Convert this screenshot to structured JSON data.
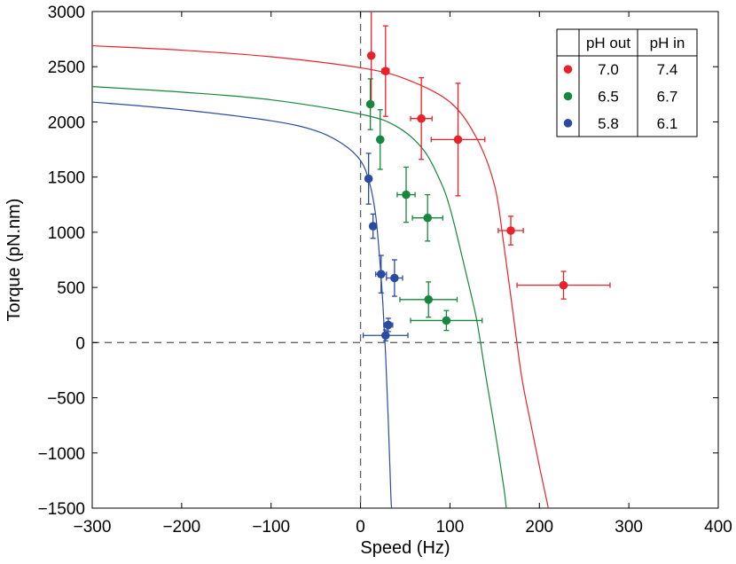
{
  "chart_data": {
    "type": "scatter",
    "xlabel": "Speed (Hz)",
    "ylabel": "Torque (pN.nm)",
    "xlim": [
      -300,
      400
    ],
    "ylim": [
      -1500,
      3000
    ],
    "xticks": [
      -300,
      -200,
      -100,
      0,
      100,
      200,
      300,
      400
    ],
    "yticks": [
      -1500,
      -1000,
      -500,
      0,
      500,
      1000,
      1500,
      2000,
      2500,
      3000
    ],
    "xtick_labels": [
      "−300",
      "−200",
      "−100",
      "0",
      "100",
      "200",
      "300",
      "400"
    ],
    "ytick_labels": [
      "−1500",
      "−1000",
      "−500",
      "0",
      "500",
      "1000",
      "1500",
      "2000",
      "2500",
      "3000"
    ],
    "reference_lines": [
      {
        "axis": "x",
        "value": 0,
        "style": "dashed"
      },
      {
        "axis": "y",
        "value": 0,
        "style": "dashed"
      }
    ],
    "legend": {
      "placement": "top-right",
      "headers": [
        "pH out",
        "pH in"
      ],
      "rows": [
        {
          "pH_out": "7.0",
          "pH_in": "7.4",
          "color": "#e8222a"
        },
        {
          "pH_out": "6.5",
          "pH_in": "6.7",
          "color": "#16873c"
        },
        {
          "pH_out": "5.8",
          "pH_in": "6.1",
          "color": "#2a4ba0"
        }
      ]
    },
    "series": [
      {
        "color": "#e8222a",
        "points": [
          {
            "x": 12,
            "y": 2600,
            "xerr": 1,
            "yerr": 420
          },
          {
            "x": 28,
            "y": 2460,
            "xerr": 4,
            "yerr": 410
          },
          {
            "x": 68,
            "y": 2030,
            "xerr": 12,
            "yerr": 370
          },
          {
            "x": 109,
            "y": 1840,
            "xerr": 30,
            "yerr": 510
          },
          {
            "x": 168,
            "y": 1015,
            "xerr": 14,
            "yerr": 130
          },
          {
            "x": 227,
            "y": 520,
            "xerr": 52,
            "yerr": 125
          }
        ],
        "fit": [
          [
            -300,
            2690
          ],
          [
            -200,
            2650
          ],
          [
            -100,
            2590
          ],
          [
            0,
            2490
          ],
          [
            50,
            2390
          ],
          [
            100,
            2180
          ],
          [
            130,
            1850
          ],
          [
            150,
            1420
          ],
          [
            160,
            900
          ],
          [
            170,
            300
          ],
          [
            180,
            -300
          ],
          [
            190,
            -720
          ],
          [
            200,
            -1120
          ],
          [
            210,
            -1500
          ]
        ]
      },
      {
        "color": "#16873c",
        "points": [
          {
            "x": 11,
            "y": 2160,
            "xerr": 1,
            "yerr": 230
          },
          {
            "x": 22,
            "y": 1840,
            "xerr": 2,
            "yerr": 270
          },
          {
            "x": 51,
            "y": 1340,
            "xerr": 10,
            "yerr": 250
          },
          {
            "x": 75,
            "y": 1130,
            "xerr": 17,
            "yerr": 210
          },
          {
            "x": 76,
            "y": 390,
            "xerr": 32,
            "yerr": 160
          },
          {
            "x": 96,
            "y": 200,
            "xerr": 40,
            "yerr": 90
          }
        ],
        "fit": [
          [
            -300,
            2320
          ],
          [
            -200,
            2270
          ],
          [
            -100,
            2200
          ],
          [
            0,
            2070
          ],
          [
            40,
            1960
          ],
          [
            70,
            1750
          ],
          [
            90,
            1450
          ],
          [
            100,
            1220
          ],
          [
            110,
            900
          ],
          [
            120,
            560
          ],
          [
            130,
            200
          ],
          [
            140,
            -300
          ],
          [
            150,
            -780
          ],
          [
            160,
            -1300
          ],
          [
            163,
            -1500
          ]
        ]
      },
      {
        "color": "#2a4ba0",
        "points": [
          {
            "x": 9,
            "y": 1485,
            "xerr": 3,
            "yerr": 230
          },
          {
            "x": 14,
            "y": 1055,
            "xerr": 3,
            "yerr": 110
          },
          {
            "x": 23,
            "y": 620,
            "xerr": 6,
            "yerr": 170
          },
          {
            "x": 38,
            "y": 585,
            "xerr": 9,
            "yerr": 165
          },
          {
            "x": 31,
            "y": 160,
            "xerr": 5,
            "yerr": 60
          },
          {
            "x": 28,
            "y": 65,
            "xerr": 25,
            "yerr": 50
          }
        ],
        "fit": [
          [
            -300,
            2180
          ],
          [
            -200,
            2110
          ],
          [
            -100,
            2010
          ],
          [
            -50,
            1920
          ],
          [
            -20,
            1800
          ],
          [
            0,
            1650
          ],
          [
            10,
            1450
          ],
          [
            17,
            1150
          ],
          [
            22,
            700
          ],
          [
            25,
            350
          ],
          [
            28,
            -100
          ],
          [
            31,
            -700
          ],
          [
            34,
            -1400
          ],
          [
            35,
            -1500
          ]
        ]
      }
    ]
  }
}
